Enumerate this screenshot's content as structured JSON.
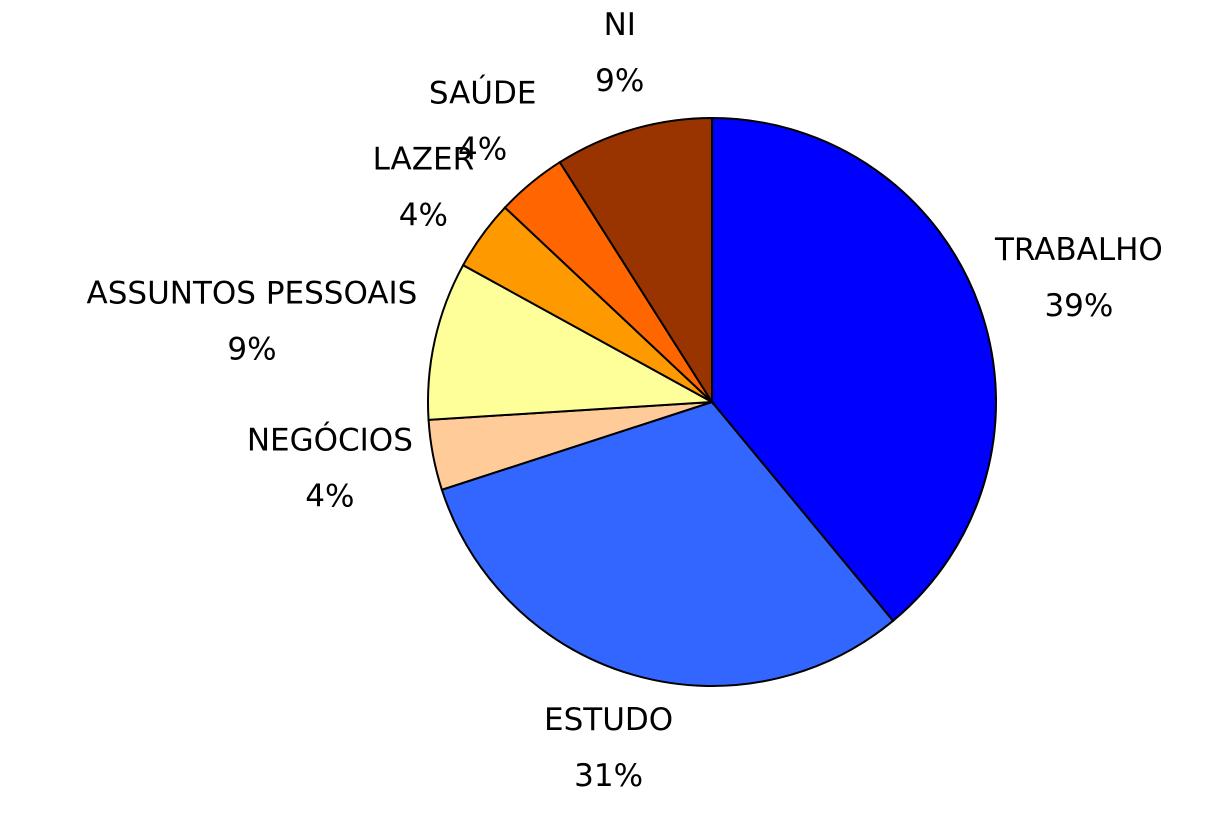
{
  "chart_data": {
    "type": "pie",
    "categories": [
      "TRABALHO",
      "ESTUDO",
      "NEGÓCIOS",
      "ASSUNTOS PESSOAIS",
      "LAZER",
      "SAÚDE",
      "NI"
    ],
    "values": [
      39,
      31,
      4,
      9,
      4,
      4,
      9
    ],
    "value_labels": [
      "39%",
      "31%",
      "4%",
      "9%",
      "4%",
      "4%",
      "9%"
    ],
    "colors": [
      "#0000ff",
      "#3366ff",
      "#ffcc99",
      "#ffff99",
      "#ff9900",
      "#ff6600",
      "#993300"
    ]
  }
}
